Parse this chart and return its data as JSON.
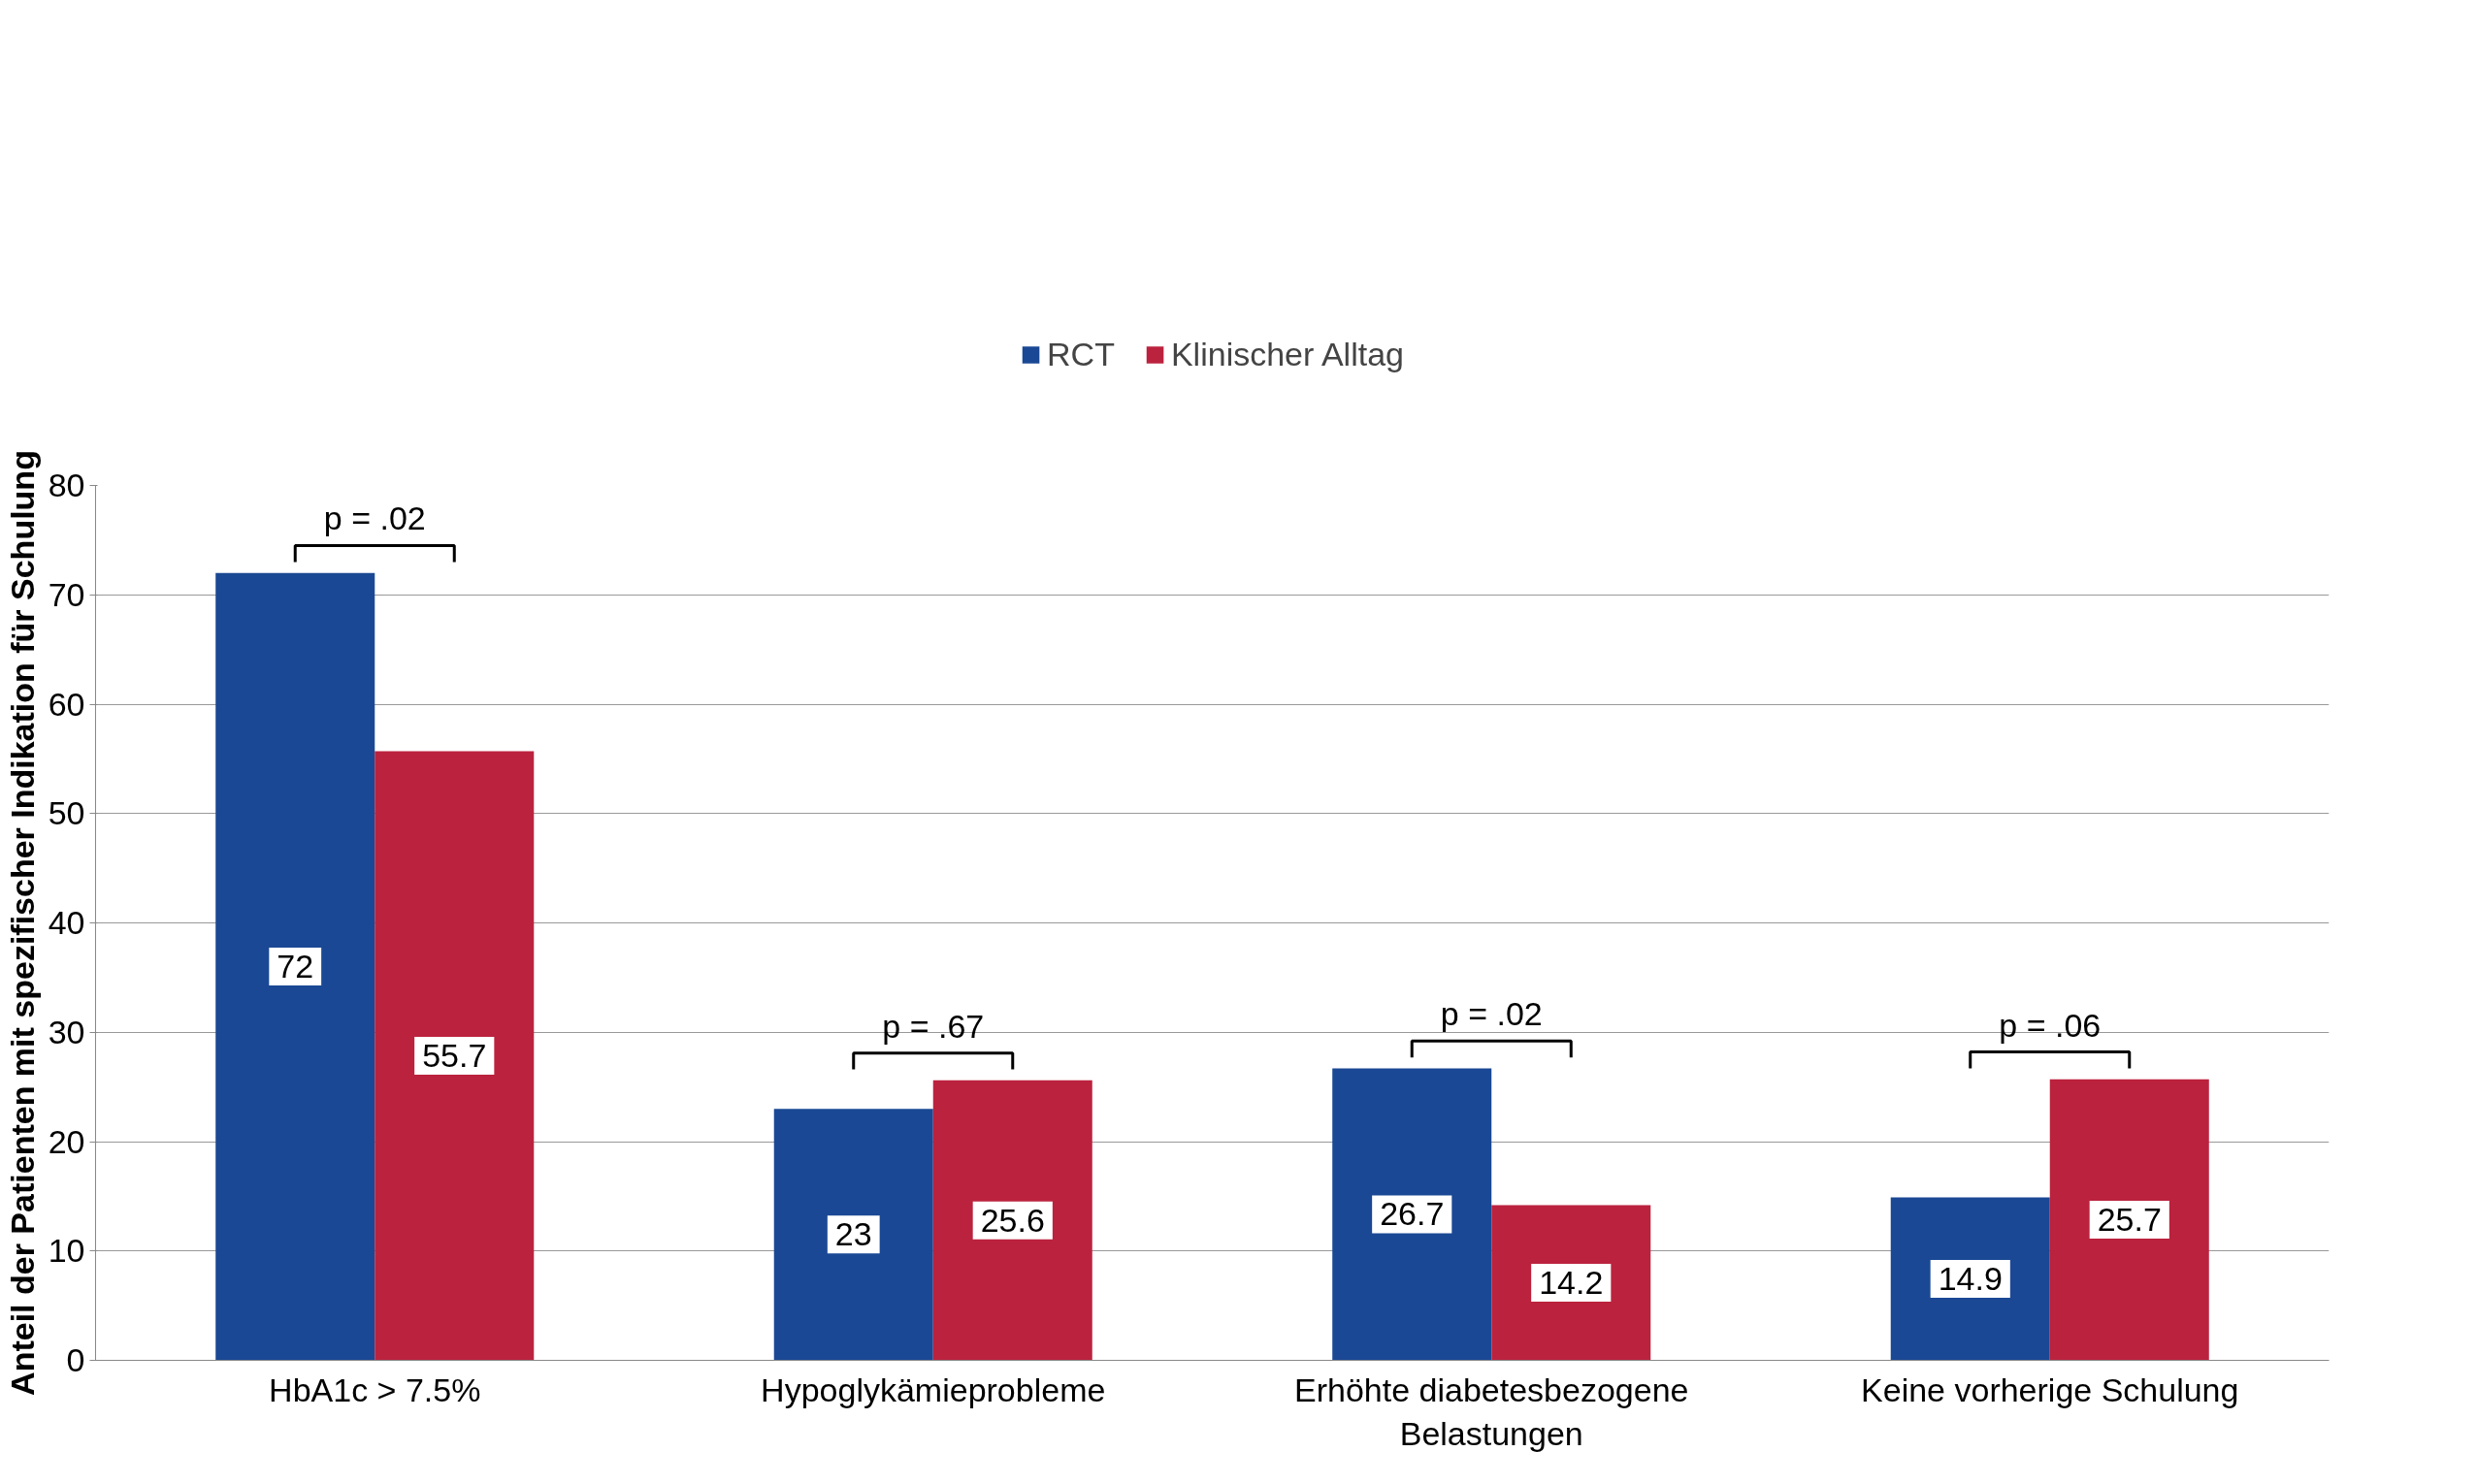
{
  "chart_data": {
    "type": "bar",
    "ylabel": "Anteil der Patienten mit spezifischer Indikation für Schulung",
    "categories": [
      "HbA1c > 7.5%",
      "Hypoglykämieprobleme",
      "Erhöhte diabetesbezogene Belastungen",
      "Keine vorherige Schulung"
    ],
    "series": [
      {
        "name": "RCT",
        "color": "#1a4894",
        "values": [
          72,
          23,
          26.7,
          14.9
        ]
      },
      {
        "name": "Klinischer Alltag",
        "color": "#bb223e",
        "values": [
          55.7,
          25.6,
          14.2,
          25.7
        ]
      }
    ],
    "ylim": [
      0,
      80
    ],
    "yticks": [
      0,
      10,
      20,
      30,
      40,
      50,
      60,
      70,
      80
    ],
    "grid": "y",
    "legend": "top",
    "data_labels": true,
    "annotations": [
      "p = .02",
      "p = .67",
      "p = .02",
      "p = .06"
    ]
  }
}
